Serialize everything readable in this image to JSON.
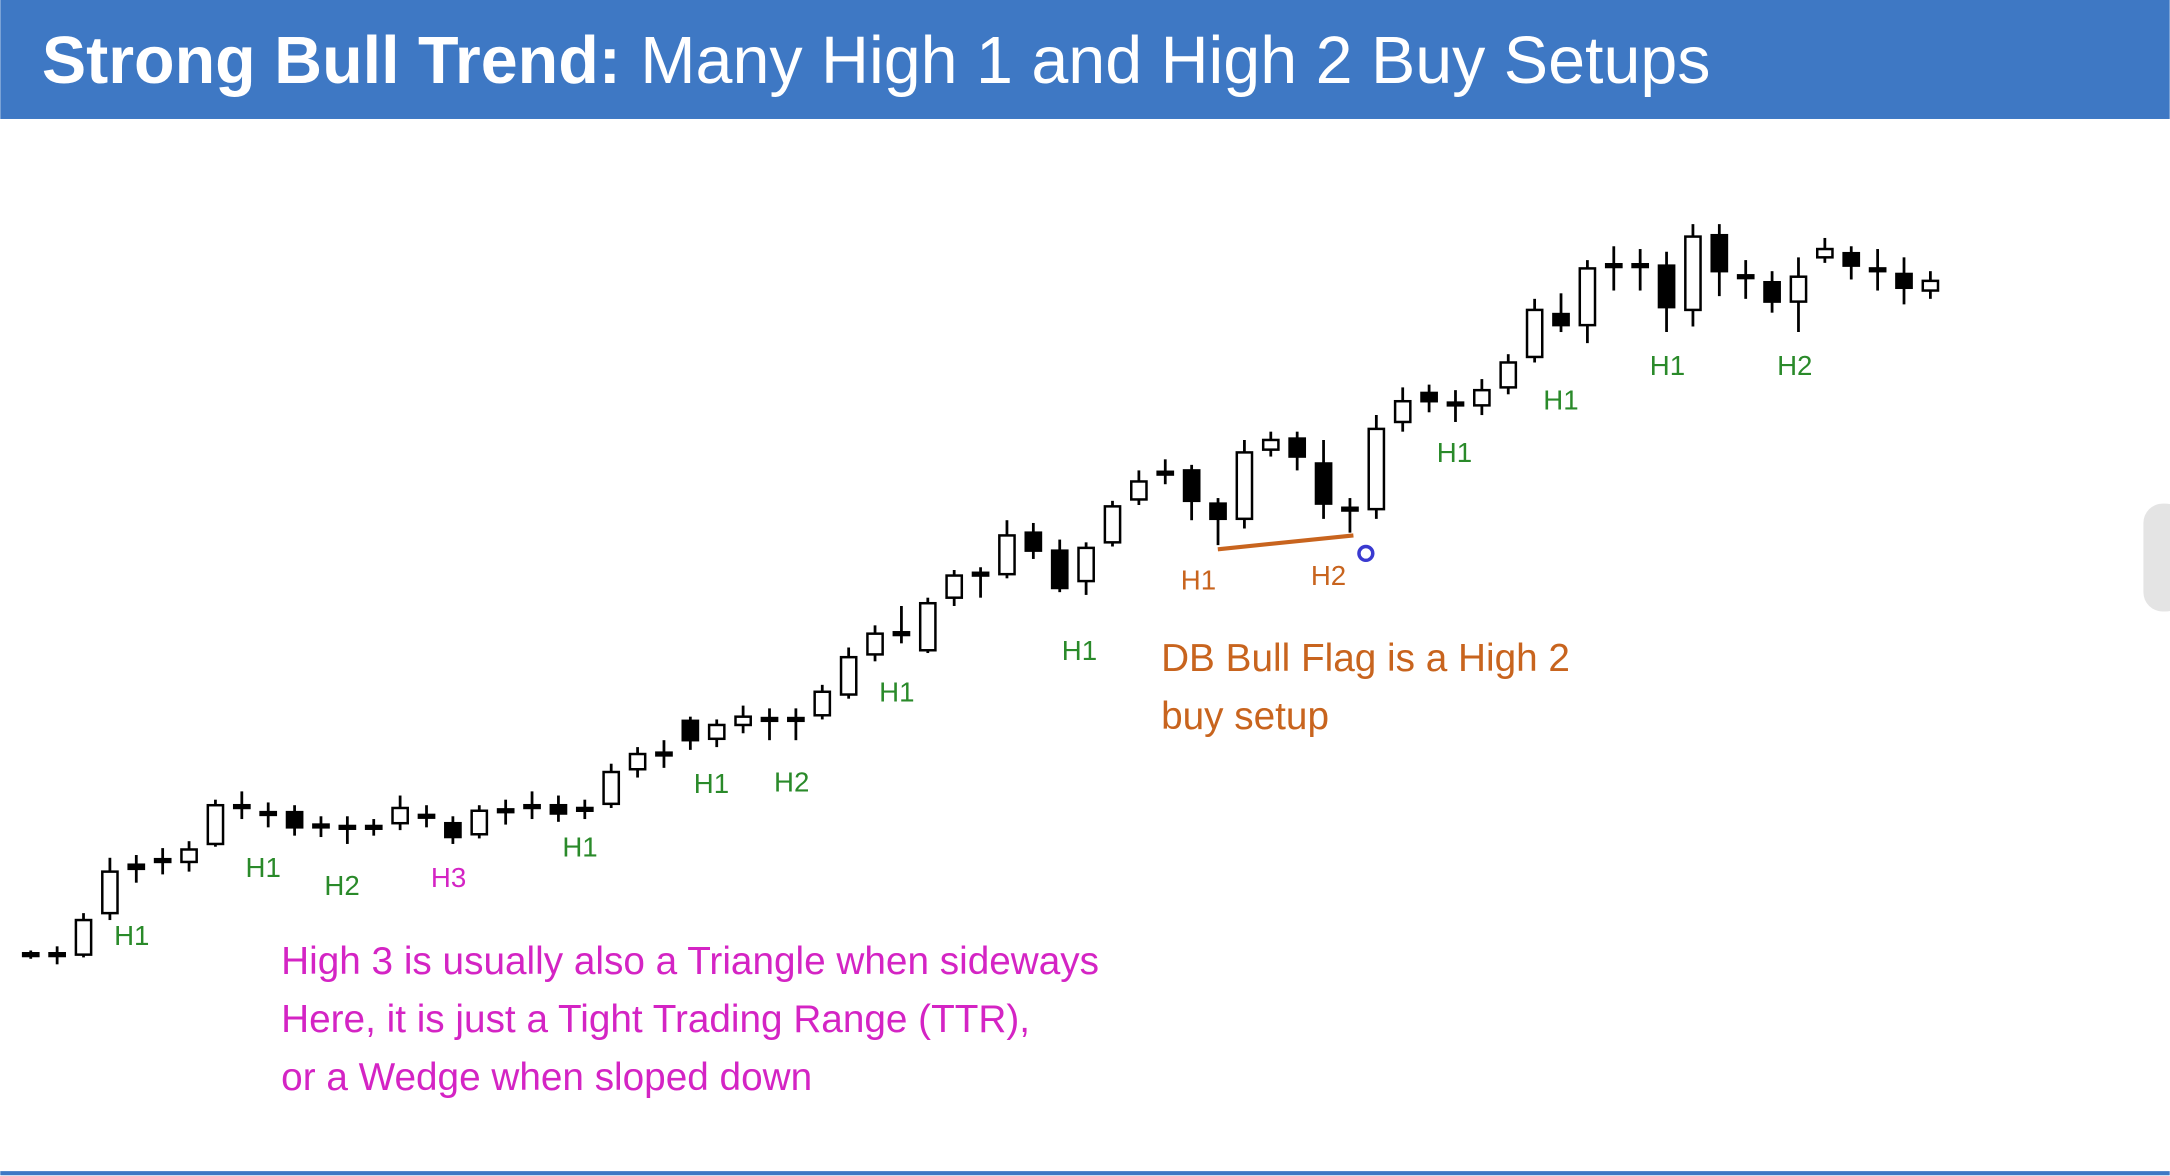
{
  "header": {
    "title_bold": "Strong Bull Trend:",
    "title_rest": "Many High 1 and High 2 Buy Setups"
  },
  "chart_data": {
    "type": "candlestick",
    "ylim": [
      0,
      540
    ],
    "up_color": "#ffffff",
    "down_color": "#000000",
    "open": [
      10,
      10,
      10,
      40,
      75,
      78,
      77,
      90,
      117,
      112,
      113,
      103,
      102,
      102,
      105,
      110,
      105,
      97,
      114,
      117,
      118,
      115,
      119,
      144,
      155,
      179,
      166,
      176,
      180,
      180,
      183,
      198,
      227,
      242,
      230,
      268,
      285,
      285,
      315,
      302,
      280,
      308,
      339,
      358,
      360,
      336,
      325,
      375,
      383,
      365,
      332,
      332,
      395,
      416,
      408,
      407,
      420,
      442,
      473,
      465,
      508,
      508,
      508,
      476,
      530,
      500,
      496,
      482,
      514,
      517,
      505,
      502,
      490
    ],
    "high": [
      13,
      16,
      40,
      80,
      82,
      87,
      92,
      122,
      128,
      120,
      118,
      110,
      110,
      108,
      125,
      118,
      110,
      118,
      122,
      128,
      125,
      122,
      148,
      160,
      165,
      182,
      180,
      190,
      188,
      188,
      205,
      232,
      248,
      262,
      268,
      288,
      290,
      324,
      322,
      310,
      308,
      338,
      360,
      368,
      364,
      340,
      382,
      388,
      388,
      382,
      340,
      400,
      420,
      422,
      418,
      426,
      444,
      484,
      488,
      512,
      522,
      520,
      518,
      538,
      538,
      512,
      504,
      514,
      528,
      522,
      520,
      514,
      504
    ],
    "low": [
      7,
      3,
      8,
      35,
      62,
      68,
      70,
      88,
      108,
      102,
      96,
      95,
      90,
      96,
      100,
      102,
      90,
      94,
      104,
      108,
      106,
      108,
      116,
      138,
      145,
      158,
      160,
      170,
      165,
      165,
      180,
      195,
      222,
      235,
      228,
      262,
      268,
      282,
      296,
      272,
      270,
      305,
      335,
      350,
      324,
      306,
      318,
      370,
      360,
      325,
      315,
      325,
      388,
      402,
      395,
      400,
      415,
      438,
      460,
      452,
      490,
      490,
      460,
      464,
      486,
      484,
      474,
      460,
      510,
      498,
      490,
      480,
      484
    ],
    "close": [
      10,
      10,
      35,
      70,
      72,
      78,
      86,
      118,
      117,
      112,
      102,
      103,
      102,
      102,
      116,
      110,
      95,
      114,
      114,
      117,
      112,
      115,
      142,
      155,
      155,
      165,
      176,
      182,
      180,
      180,
      200,
      225,
      242,
      242,
      264,
      284,
      285,
      313,
      302,
      275,
      304,
      334,
      352,
      358,
      338,
      325,
      373,
      382,
      370,
      336,
      332,
      390,
      410,
      410,
      408,
      418,
      438,
      476,
      465,
      506,
      508,
      508,
      478,
      529,
      504,
      500,
      482,
      500,
      520,
      508,
      505,
      492,
      497
    ],
    "annotations": [
      {
        "text": "H1",
        "color": "#2a8a2a"
      },
      {
        "text": "H1",
        "color": "#2a8a2a"
      },
      {
        "text": "H2",
        "color": "#2a8a2a"
      },
      {
        "text": "H3",
        "color": "#d424c4"
      },
      {
        "text": "H1",
        "color": "#2a8a2a"
      },
      {
        "text": "H1",
        "color": "#2a8a2a"
      },
      {
        "text": "H2",
        "color": "#2a8a2a"
      },
      {
        "text": "H1",
        "color": "#2a8a2a"
      },
      {
        "text": "H1",
        "color": "#2a8a2a"
      },
      {
        "text": "H1",
        "color": "#c8641e"
      },
      {
        "text": "H2",
        "color": "#c8641e"
      },
      {
        "text": "H1",
        "color": "#2a8a2a"
      },
      {
        "text": "H1",
        "color": "#2a8a2a"
      },
      {
        "text": "H1",
        "color": "#2a8a2a"
      },
      {
        "text": "H2",
        "color": "#2a8a2a"
      }
    ],
    "notes": [
      {
        "color": "#c8641e",
        "lines": [
          "DB Bull Flag is a High 2",
          "buy setup"
        ]
      },
      {
        "color": "#d424c4",
        "lines": [
          "High 3 is usually also a Triangle when sideways",
          "Here, it is just a Tight Trading Range (TTR),",
          "or a Wedge when sloped down"
        ]
      }
    ]
  }
}
